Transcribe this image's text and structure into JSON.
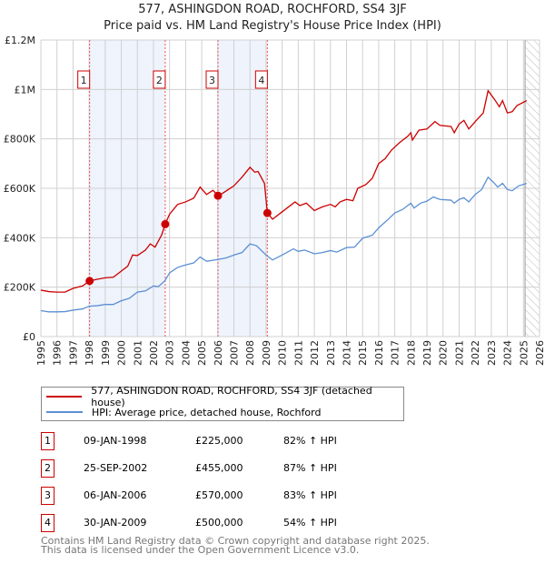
{
  "title": "577, ASHINGDON ROAD, ROCHFORD, SS4 3JF",
  "subtitle": "Price paid vs. HM Land Registry's House Price Index (HPI)",
  "chart_data": {
    "type": "line",
    "ylim": [
      0,
      1200000
    ],
    "xlim": [
      1995,
      2026
    ],
    "y_ticks": [
      {
        "v": 0,
        "label": "£0"
      },
      {
        "v": 200000,
        "label": "£200K"
      },
      {
        "v": 400000,
        "label": "£400K"
      },
      {
        "v": 600000,
        "label": "£600K"
      },
      {
        "v": 800000,
        "label": "£800K"
      },
      {
        "v": 1000000,
        "label": "£1M"
      },
      {
        "v": 1200000,
        "label": "£1.2M"
      }
    ],
    "x_ticks": [
      "1995",
      "1996",
      "1997",
      "1998",
      "1999",
      "2000",
      "2001",
      "2002",
      "2003",
      "2004",
      "2005",
      "2006",
      "2007",
      "2008",
      "2009",
      "2010",
      "2011",
      "2012",
      "2013",
      "2014",
      "2015",
      "2016",
      "2017",
      "2018",
      "2019",
      "2020",
      "2021",
      "2022",
      "2023",
      "2024",
      "2025",
      "2026"
    ],
    "shaded_periods": [
      [
        1998.03,
        2002.73
      ],
      [
        2006.01,
        2009.08
      ]
    ],
    "forecast_hatch_from": 2025.1,
    "series": [
      {
        "name": "577, ASHINGDON ROAD, ROCHFORD, SS4 3JF (detached house)",
        "color": "#cc0000",
        "points": [
          [
            1995,
            188000
          ],
          [
            1995.5,
            182000
          ],
          [
            1996,
            180000
          ],
          [
            1996.5,
            180000
          ],
          [
            1997,
            195000
          ],
          [
            1997.6,
            205000
          ],
          [
            1998.03,
            225000
          ],
          [
            1998.5,
            232000
          ],
          [
            1999,
            238000
          ],
          [
            1999.5,
            240000
          ],
          [
            2000,
            265000
          ],
          [
            2000.4,
            285000
          ],
          [
            2000.7,
            330000
          ],
          [
            2001,
            328000
          ],
          [
            2001.5,
            350000
          ],
          [
            2001.8,
            375000
          ],
          [
            2002.1,
            362000
          ],
          [
            2002.5,
            410000
          ],
          [
            2002.73,
            455000
          ],
          [
            2003,
            495000
          ],
          [
            2003.5,
            535000
          ],
          [
            2004,
            545000
          ],
          [
            2004.5,
            560000
          ],
          [
            2004.9,
            605000
          ],
          [
            2005.3,
            575000
          ],
          [
            2005.7,
            592000
          ],
          [
            2006.01,
            570000
          ],
          [
            2006.3,
            580000
          ],
          [
            2007,
            610000
          ],
          [
            2007.5,
            645000
          ],
          [
            2008,
            685000
          ],
          [
            2008.3,
            665000
          ],
          [
            2008.5,
            668000
          ],
          [
            2008.9,
            620000
          ],
          [
            2009.08,
            500000
          ],
          [
            2009.4,
            475000
          ],
          [
            2010,
            505000
          ],
          [
            2010.8,
            545000
          ],
          [
            2011.1,
            530000
          ],
          [
            2011.5,
            540000
          ],
          [
            2012,
            510000
          ],
          [
            2012.5,
            525000
          ],
          [
            2013,
            535000
          ],
          [
            2013.3,
            525000
          ],
          [
            2013.6,
            545000
          ],
          [
            2014,
            555000
          ],
          [
            2014.4,
            550000
          ],
          [
            2014.7,
            600000
          ],
          [
            2015.2,
            615000
          ],
          [
            2015.6,
            640000
          ],
          [
            2016,
            700000
          ],
          [
            2016.4,
            720000
          ],
          [
            2016.8,
            755000
          ],
          [
            2017.3,
            785000
          ],
          [
            2017.8,
            810000
          ],
          [
            2018,
            825000
          ],
          [
            2018.1,
            795000
          ],
          [
            2018.5,
            835000
          ],
          [
            2019,
            840000
          ],
          [
            2019.5,
            870000
          ],
          [
            2019.8,
            855000
          ],
          [
            2020.5,
            850000
          ],
          [
            2020.7,
            825000
          ],
          [
            2021,
            860000
          ],
          [
            2021.3,
            875000
          ],
          [
            2021.6,
            840000
          ],
          [
            2022,
            870000
          ],
          [
            2022.5,
            905000
          ],
          [
            2022.8,
            995000
          ],
          [
            2023.2,
            960000
          ],
          [
            2023.5,
            930000
          ],
          [
            2023.7,
            955000
          ],
          [
            2024,
            905000
          ],
          [
            2024.3,
            910000
          ],
          [
            2024.6,
            935000
          ],
          [
            2025.2,
            955000
          ]
        ]
      },
      {
        "name": "HPI: Average price, detached house, Rochford",
        "color": "#5b8fd4",
        "points": [
          [
            1995,
            105000
          ],
          [
            1995.5,
            100000
          ],
          [
            1996,
            100000
          ],
          [
            1996.5,
            101000
          ],
          [
            1997,
            107000
          ],
          [
            1997.6,
            112000
          ],
          [
            1998,
            123000
          ],
          [
            1998.5,
            125000
          ],
          [
            1999,
            130000
          ],
          [
            1999.5,
            130000
          ],
          [
            2000,
            145000
          ],
          [
            2000.5,
            155000
          ],
          [
            2001,
            180000
          ],
          [
            2001.5,
            185000
          ],
          [
            2002,
            205000
          ],
          [
            2002.3,
            202000
          ],
          [
            2002.7,
            225000
          ],
          [
            2003,
            258000
          ],
          [
            2003.5,
            280000
          ],
          [
            2004,
            290000
          ],
          [
            2004.5,
            298000
          ],
          [
            2004.9,
            322000
          ],
          [
            2005.3,
            305000
          ],
          [
            2006,
            312000
          ],
          [
            2006.5,
            318000
          ],
          [
            2007,
            330000
          ],
          [
            2007.5,
            340000
          ],
          [
            2008,
            375000
          ],
          [
            2008.4,
            368000
          ],
          [
            2009,
            330000
          ],
          [
            2009.4,
            310000
          ],
          [
            2010,
            330000
          ],
          [
            2010.7,
            355000
          ],
          [
            2011,
            345000
          ],
          [
            2011.4,
            350000
          ],
          [
            2012,
            335000
          ],
          [
            2012.5,
            340000
          ],
          [
            2013,
            348000
          ],
          [
            2013.4,
            342000
          ],
          [
            2014,
            360000
          ],
          [
            2014.5,
            362000
          ],
          [
            2015,
            398000
          ],
          [
            2015.6,
            410000
          ],
          [
            2016,
            440000
          ],
          [
            2016.6,
            475000
          ],
          [
            2017,
            500000
          ],
          [
            2017.5,
            515000
          ],
          [
            2018,
            540000
          ],
          [
            2018.2,
            520000
          ],
          [
            2018.6,
            540000
          ],
          [
            2019,
            548000
          ],
          [
            2019.4,
            565000
          ],
          [
            2019.8,
            555000
          ],
          [
            2020.5,
            552000
          ],
          [
            2020.7,
            540000
          ],
          [
            2021,
            555000
          ],
          [
            2021.3,
            562000
          ],
          [
            2021.6,
            545000
          ],
          [
            2022,
            575000
          ],
          [
            2022.4,
            595000
          ],
          [
            2022.8,
            645000
          ],
          [
            2023.2,
            620000
          ],
          [
            2023.4,
            605000
          ],
          [
            2023.7,
            620000
          ],
          [
            2024,
            595000
          ],
          [
            2024.3,
            590000
          ],
          [
            2024.7,
            610000
          ],
          [
            2025.2,
            620000
          ]
        ]
      }
    ],
    "sales": [
      {
        "label": "1",
        "x": 2.0,
        "date": "09-JAN-1998",
        "t": 1998.03,
        "price": 225000,
        "price_label": "£225,000",
        "hpi": "82% ↑ HPI"
      },
      {
        "label": "2",
        "date": "25-SEP-2002",
        "t": 2002.73,
        "price": 455000,
        "price_label": "£455,000",
        "hpi": "87% ↑ HPI"
      },
      {
        "label": "3",
        "date": "06-JAN-2006",
        "t": 2006.01,
        "price": 570000,
        "price_label": "£570,000",
        "hpi": "83% ↑ HPI"
      },
      {
        "label": "4",
        "date": "30-JAN-2009",
        "t": 2009.08,
        "price": 500000,
        "price_label": "£500,000",
        "hpi": "54% ↑ HPI"
      }
    ]
  },
  "footer": [
    "Contains HM Land Registry data © Crown copyright and database right 2025.",
    "This data is licensed under the Open Government Licence v3.0."
  ]
}
